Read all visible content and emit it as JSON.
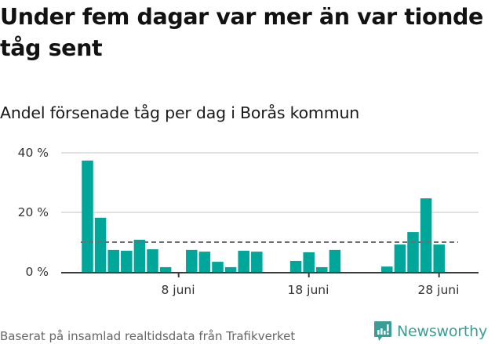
{
  "header": {
    "title": "Under fem dagar var mer än var tionde tåg sent",
    "subtitle": "Andel försenade tåg per dag i Borås kommun"
  },
  "footer": {
    "source": "Baserat på insamlad realtidsdata från Trafikverket",
    "brand": "Newsworthy"
  },
  "colors": {
    "bar": "#00a699",
    "reference_line": "#6e6e73",
    "gridline": "#e0e0e0",
    "axis": "#3a3a3a",
    "brand": "#3a9e96"
  },
  "axis": {
    "y_ticks": [
      "0 %",
      "20 %",
      "40 %"
    ],
    "x_ticks": [
      "8 juni",
      "18 juni",
      "28 juni"
    ]
  },
  "chart_data": {
    "type": "bar",
    "title": "Under fem dagar var mer än var tionde tåg sent",
    "subtitle": "Andel försenade tåg per dag i Borås kommun",
    "xlabel": "",
    "ylabel": "",
    "ylim": [
      0,
      40
    ],
    "y_unit": "%",
    "grid": true,
    "legend": "none",
    "reference_line": {
      "value": 10,
      "style": "dashed",
      "label": ""
    },
    "x_tick_labels": [
      "8 juni",
      "18 juni",
      "28 juni"
    ],
    "y_tick_labels": [
      "0 %",
      "20 %",
      "40 %"
    ],
    "categories": [
      "1 juni",
      "2 juni",
      "3 juni",
      "4 juni",
      "5 juni",
      "6 juni",
      "7 juni",
      "8 juni",
      "9 juni",
      "10 juni",
      "11 juni",
      "12 juni",
      "13 juni",
      "14 juni",
      "15 juni",
      "16 juni",
      "17 juni",
      "18 juni",
      "19 juni",
      "20 juni",
      "21 juni",
      "22 juni",
      "23 juni",
      "24 juni",
      "25 juni",
      "26 juni",
      "27 juni",
      "28 juni"
    ],
    "values": [
      37.4,
      18.2,
      7.4,
      7.1,
      10.8,
      7.6,
      1.6,
      0,
      7.4,
      6.8,
      3.4,
      1.6,
      7.1,
      6.8,
      0,
      0,
      3.7,
      6.6,
      1.6,
      7.4,
      0,
      0,
      0,
      1.8,
      9.2,
      13.4,
      24.7,
      9.2
    ],
    "source": "Baserat på insamlad realtidsdata från Trafikverket"
  }
}
